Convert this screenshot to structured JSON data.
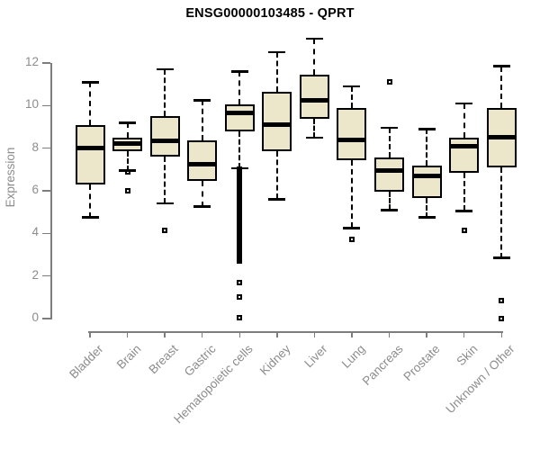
{
  "page": {
    "background": "#ffffff"
  },
  "chart_data": {
    "type": "boxplot",
    "title": "ENSG00000103485 - QPRT",
    "ylabel": "Expression",
    "xlabel": "",
    "ylim": [
      0,
      12
    ],
    "yticks": [
      0,
      2,
      4,
      6,
      8,
      10,
      12
    ],
    "grid": false,
    "legend": false,
    "categories": [
      "Bladder",
      "Brain",
      "Breast",
      "Gastric",
      "Hematopoietic cells",
      "Kidney",
      "Liver",
      "Lung",
      "Pancreas",
      "Prostate",
      "Skin",
      "Unknown / Other"
    ],
    "boxes": [
      {
        "label": "Bladder",
        "low": 4.75,
        "q1": 6.3,
        "median": 8.0,
        "q3": 9.1,
        "high": 11.1,
        "outliers": []
      },
      {
        "label": "Brain",
        "low": 6.95,
        "q1": 7.85,
        "median": 8.2,
        "q3": 8.5,
        "high": 9.2,
        "outliers": [
          6.9,
          6.0
        ]
      },
      {
        "label": "Breast",
        "low": 5.4,
        "q1": 7.6,
        "median": 8.35,
        "q3": 9.5,
        "high": 11.7,
        "outliers": [
          4.15
        ]
      },
      {
        "label": "Gastric",
        "low": 5.25,
        "q1": 6.45,
        "median": 7.25,
        "q3": 8.35,
        "high": 10.25,
        "outliers": []
      },
      {
        "label": "Hematopoietic cells",
        "low": 7.05,
        "q1": 8.8,
        "median": 9.65,
        "q3": 10.05,
        "high": 11.6,
        "outliers": [
          1.7,
          1.0,
          0.05
        ],
        "outlier_band": {
          "from": 2.7,
          "to": 7.0,
          "step": 0.1
        }
      },
      {
        "label": "Kidney",
        "low": 5.6,
        "q1": 7.85,
        "median": 9.1,
        "q3": 10.65,
        "high": 12.5,
        "outliers": []
      },
      {
        "label": "Liver",
        "low": 8.5,
        "q1": 9.4,
        "median": 10.25,
        "q3": 11.45,
        "high": 13.15,
        "outliers": []
      },
      {
        "label": "Lung",
        "low": 4.25,
        "q1": 7.45,
        "median": 8.4,
        "q3": 9.9,
        "high": 10.9,
        "outliers": [
          3.7
        ]
      },
      {
        "label": "Pancreas",
        "low": 5.1,
        "q1": 5.95,
        "median": 6.95,
        "q3": 7.55,
        "high": 8.95,
        "outliers": [
          11.1
        ]
      },
      {
        "label": "Prostate",
        "low": 4.75,
        "q1": 5.65,
        "median": 6.7,
        "q3": 7.2,
        "high": 8.9,
        "outliers": []
      },
      {
        "label": "Skin",
        "low": 5.05,
        "q1": 6.85,
        "median": 8.1,
        "q3": 8.5,
        "high": 10.1,
        "outliers": [
          4.15
        ]
      },
      {
        "label": "Unknown / Other",
        "low": 2.85,
        "q1": 7.1,
        "median": 8.5,
        "q3": 9.9,
        "high": 11.85,
        "outliers": [
          0.85,
          0.0
        ]
      }
    ],
    "style": {
      "box_fill": "#ece6cb",
      "line": "#000000",
      "axis": "#7d7d7d",
      "tick_label": "#8c8c8c",
      "title_color": "#000000",
      "background": "#ffffff"
    }
  }
}
